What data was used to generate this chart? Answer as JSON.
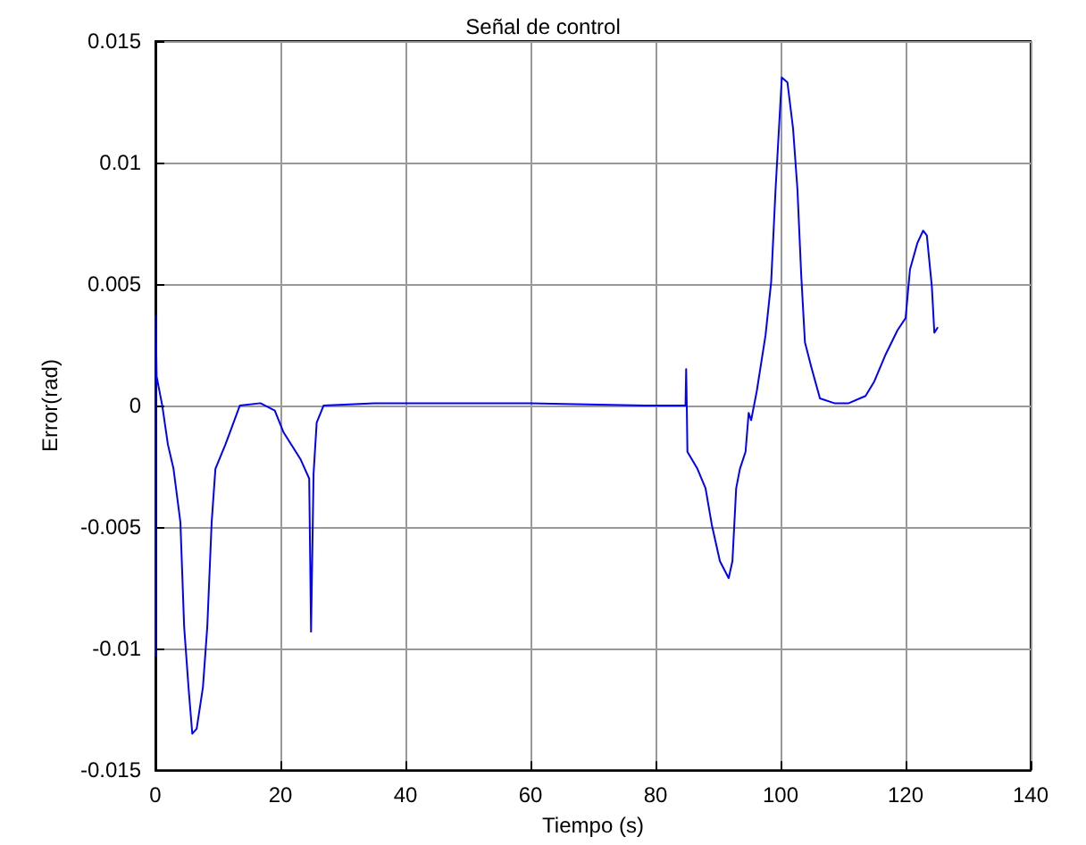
{
  "chart_data": {
    "type": "line",
    "title": "Señal de control",
    "xlabel": "Tiempo (s)",
    "ylabel": "Error(rad)",
    "xlim": [
      0,
      140
    ],
    "xticks": [
      0,
      20,
      40,
      60,
      80,
      100,
      120,
      140
    ],
    "ylim": [
      -0.015,
      0.015
    ],
    "yticks": [
      -0.015,
      -0.01,
      -0.005,
      0,
      0.005,
      0.01,
      0.015
    ],
    "grid": true,
    "marker": "none",
    "line_style": "solid",
    "series": [
      {
        "color": "#0000ff",
        "x": [
          0,
          0.05,
          0.2,
          1.1,
          2,
          2.9,
          4,
          4.6,
          5.3,
          5.9,
          6.6,
          7.6,
          8.3,
          9,
          9.6,
          11.2,
          13.5,
          16.8,
          19.1,
          20.5,
          23.2,
          24.6,
          24.9,
          25.3,
          25.8,
          26.9,
          35,
          60,
          78.3,
          84.8,
          84.9,
          85,
          85.1,
          86.7,
          88,
          89,
          90.3,
          91.7,
          92.3,
          92.9,
          93.5,
          94.4,
          94.9,
          95.3,
          96.2,
          97.6,
          98.5,
          99.2,
          100.2,
          101.1,
          102,
          102.7,
          103.3,
          103.9,
          104.9,
          106.3,
          108.6,
          110.9,
          113.6,
          115,
          116.8,
          118.7,
          120,
          120.7,
          121.9,
          122.8,
          123.4,
          124.2,
          124.6,
          125.1
        ],
        "values": [
          -0.0103,
          0.0037,
          0.0012,
          0,
          -0.0016,
          -0.0026,
          -0.0048,
          -0.0091,
          -0.0116,
          -0.0135,
          -0.0133,
          -0.0116,
          -0.0091,
          -0.0048,
          -0.0026,
          -0.0016,
          0,
          0.0001,
          -0.0002,
          -0.0011,
          -0.0022,
          -0.003,
          -0.0093,
          -0.0028,
          -0.0007,
          0,
          0.0001,
          0.0001,
          0,
          0,
          0.0015,
          0,
          -0.0019,
          -0.0026,
          -0.0034,
          -0.0049,
          -0.0064,
          -0.0071,
          -0.0064,
          -0.0034,
          -0.0026,
          -0.0019,
          -0.0003,
          -0.0006,
          0.0006,
          0.0029,
          0.0051,
          0.0089,
          0.0135,
          0.0133,
          0.0114,
          0.0089,
          0.0054,
          0.0026,
          0.0016,
          0.0003,
          0.0001,
          0.0001,
          0.0004,
          0.001,
          0.0021,
          0.0031,
          0.0036,
          0.0056,
          0.0067,
          0.0072,
          0.007,
          0.0049,
          0.003,
          0.0032
        ]
      }
    ]
  }
}
